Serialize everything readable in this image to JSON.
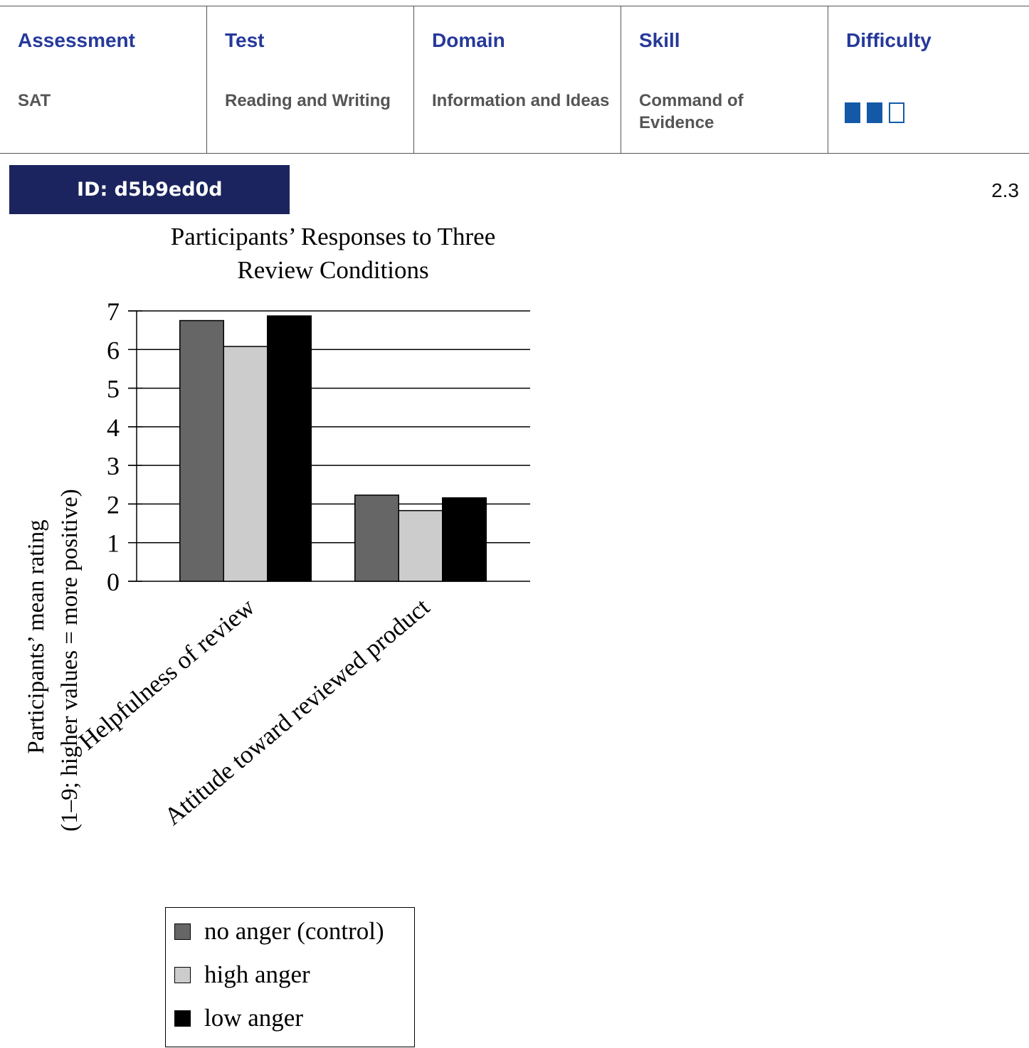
{
  "header": {
    "columns": [
      {
        "heading": "Assessment",
        "value": "SAT"
      },
      {
        "heading": "Test",
        "value": "Reading and Writing"
      },
      {
        "heading": "Domain",
        "value": "Information and Ideas"
      },
      {
        "heading": "Skill",
        "value": "Command of Evidence"
      },
      {
        "heading": "Difficulty",
        "value": ""
      }
    ],
    "difficulty": {
      "filled": 2,
      "total": 3,
      "color": "#1359a8"
    }
  },
  "question": {
    "id_label": "ID: d5b9ed0d",
    "version": "2.3"
  },
  "chart_data": {
    "type": "bar",
    "title": "Participants’ Responses to Three Review Conditions",
    "title_lines": [
      "Participants’ Responses to Three",
      "Review Conditions"
    ],
    "ylabel_lines": [
      "Participants’ mean rating",
      "(1–9; higher values = more positive)"
    ],
    "categories": [
      "Helpfulness of review",
      "Attitude toward reviewed product"
    ],
    "series": [
      {
        "name": "no anger (control)",
        "color": "#666666",
        "values": [
          6.75,
          2.23
        ]
      },
      {
        "name": "high anger",
        "color": "#cccccc",
        "values": [
          6.08,
          1.83
        ]
      },
      {
        "name": "low anger",
        "color": "#000000",
        "values": [
          6.87,
          2.16
        ]
      }
    ],
    "ylim": [
      0,
      7
    ],
    "yticks": [
      0,
      1,
      2,
      3,
      4,
      5,
      6,
      7
    ],
    "grid": true,
    "legend_position": "bottom"
  }
}
